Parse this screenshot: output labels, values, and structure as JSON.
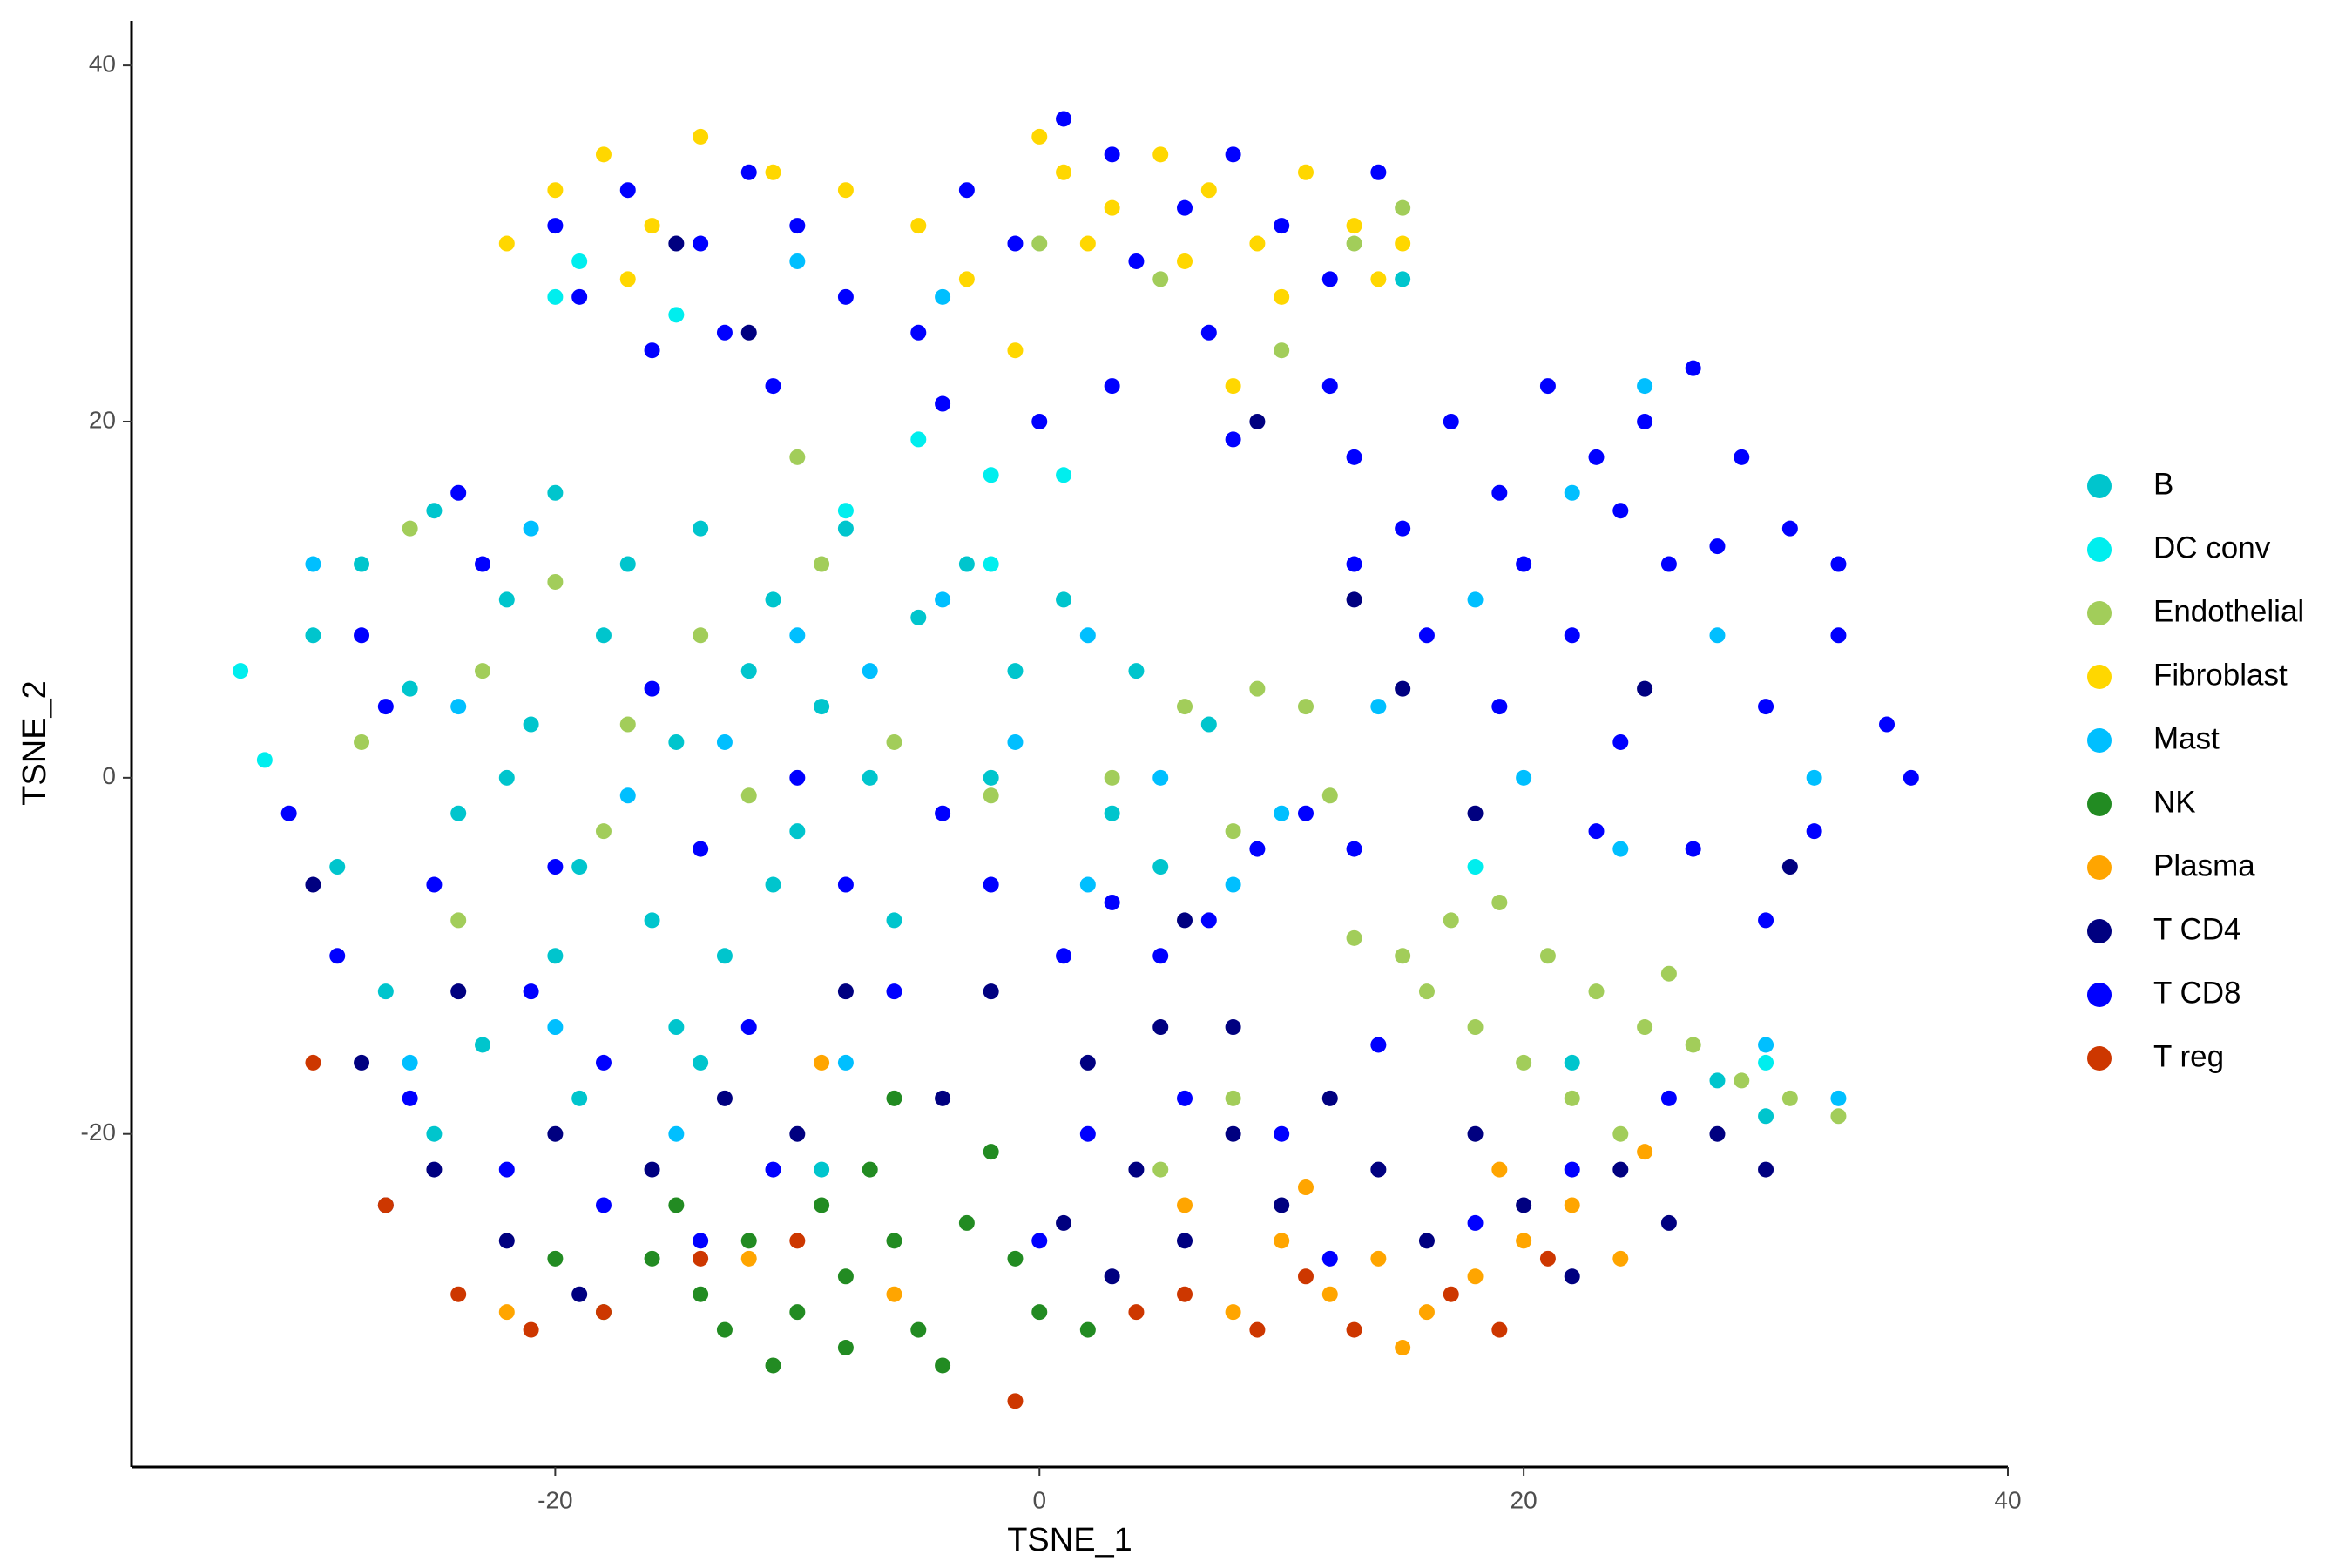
{
  "chart_data": {
    "type": "scatter",
    "xlabel": "TSNE_1",
    "ylabel": "TSNE_2",
    "xlim": [
      -37.5,
      40
    ],
    "ylim": [
      -38.7,
      42.5
    ],
    "xticks": [
      -20,
      0,
      20,
      40
    ],
    "yticks": [
      -20,
      0,
      20,
      40
    ],
    "legend": "right",
    "series": [
      {
        "name": "B",
        "color": "#00c5cd",
        "x": [
          -30,
          -28,
          -26,
          -25,
          -24,
          -22,
          -21,
          -20,
          -19,
          -18,
          -17,
          -16,
          -15,
          -14,
          -13,
          -12,
          -11,
          -10,
          -9,
          -8,
          -27,
          -23,
          -19,
          -15,
          -11,
          -7,
          -5,
          -3,
          -1,
          1,
          3,
          5,
          7,
          -25,
          -20,
          -14,
          -9,
          -6,
          -29,
          -22,
          15,
          22,
          28,
          30,
          -2,
          4
        ],
        "y": [
          8,
          12,
          5,
          15,
          -2,
          10,
          3,
          16,
          -5,
          8,
          12,
          -8,
          2,
          14,
          -10,
          6,
          10,
          -3,
          4,
          14,
          -12,
          -15,
          -18,
          -14,
          -6,
          0,
          9,
          12,
          6,
          10,
          -2,
          -5,
          3,
          -20,
          -10,
          -16,
          -22,
          -8,
          -5,
          0,
          28,
          -16,
          -17,
          -19,
          0,
          6
        ]
      },
      {
        "name": "DC conv",
        "color": "#00eeee",
        "x": [
          -2,
          1,
          -5,
          -15,
          -19,
          -20,
          -33,
          -32,
          -8,
          18,
          30,
          -2
        ],
        "y": [
          17,
          17,
          19,
          26,
          29,
          27,
          6,
          1,
          15,
          -5,
          -16,
          12
        ]
      },
      {
        "name": "Endothelial",
        "color": "#a2cd5a",
        "x": [
          -26,
          -23,
          -20,
          -17,
          -14,
          -12,
          -9,
          -6,
          -2,
          3,
          6,
          9,
          11,
          8,
          12,
          13,
          15,
          17,
          19,
          21,
          23,
          25,
          27,
          29,
          31,
          33,
          18,
          20,
          22,
          24,
          16,
          26,
          -28,
          -24,
          -18,
          -10,
          0,
          5,
          10,
          13,
          15,
          8,
          5
        ],
        "y": [
          14,
          6,
          11,
          3,
          8,
          -1,
          12,
          2,
          -1,
          0,
          4,
          5,
          4,
          -3,
          -1,
          -9,
          -10,
          -8,
          -7,
          -10,
          -12,
          -14,
          -15,
          -17,
          -18,
          -19,
          -14,
          -16,
          -18,
          -20,
          -12,
          -11,
          2,
          -8,
          -3,
          18,
          30,
          28,
          24,
          30,
          32,
          -18,
          -22
        ]
      },
      {
        "name": "Fibroblast",
        "color": "#ffd700",
        "x": [
          -20,
          -18,
          -16,
          -14,
          -22,
          -11,
          -8,
          -5,
          -3,
          0,
          1,
          3,
          5,
          7,
          9,
          11,
          13,
          15,
          14,
          10,
          6,
          2,
          -1,
          8,
          -17
        ],
        "y": [
          33,
          35,
          31,
          36,
          30,
          34,
          33,
          31,
          28,
          36,
          34,
          32,
          35,
          33,
          30,
          34,
          31,
          30,
          28,
          27,
          29,
          30,
          24,
          22,
          28
        ]
      },
      {
        "name": "Mast",
        "color": "#00bfff",
        "x": [
          -24,
          -21,
          -17,
          -13,
          -10,
          -7,
          -4,
          -1,
          2,
          5,
          8,
          10,
          -15,
          -20,
          -26,
          14,
          18,
          22,
          25,
          28,
          32,
          20,
          24,
          30,
          33,
          -10,
          -4,
          -30,
          -8,
          2
        ],
        "y": [
          4,
          14,
          -1,
          2,
          8,
          6,
          10,
          2,
          8,
          0,
          -6,
          -2,
          -20,
          -14,
          -16,
          4,
          10,
          16,
          22,
          8,
          0,
          0,
          -4,
          -15,
          -18,
          29,
          27,
          12,
          -16,
          -6
        ]
      },
      {
        "name": "NK",
        "color": "#228b22",
        "x": [
          -16,
          -14,
          -12,
          -10,
          -8,
          -6,
          -5,
          -4,
          -7,
          -9,
          -13,
          -11,
          -3,
          -2,
          -15,
          -6,
          -18,
          0,
          2,
          -1,
          -20,
          -8
        ],
        "y": [
          -27,
          -29,
          -26,
          -30,
          -28,
          -26,
          -31,
          -33,
          -22,
          -24,
          -31,
          -33,
          -25,
          -21,
          -24,
          -18,
          -30,
          -30,
          -31,
          -27,
          -27,
          -32
        ]
      },
      {
        "name": "Plasma",
        "color": "#ffa500",
        "x": [
          10,
          12,
          14,
          16,
          18,
          20,
          22,
          24,
          8,
          6,
          19,
          25,
          -12,
          -6,
          -22,
          -9,
          15,
          11
        ],
        "y": [
          -26,
          -29,
          -27,
          -30,
          -28,
          -26,
          -24,
          -27,
          -30,
          -24,
          -22,
          -21,
          -27,
          -29,
          -30,
          -16,
          -32,
          -23
        ]
      },
      {
        "name": "T CD4",
        "color": "#000080",
        "x": [
          -28,
          -25,
          -22,
          -19,
          -16,
          -13,
          -10,
          -24,
          -30,
          -27,
          -20,
          -8,
          -4,
          2,
          4,
          6,
          8,
          10,
          12,
          14,
          16,
          18,
          20,
          22,
          24,
          26,
          28,
          30,
          3,
          1,
          5,
          8,
          13,
          15,
          18,
          -15,
          -12,
          9,
          31,
          25,
          -2,
          6
        ],
        "y": [
          -16,
          -22,
          -26,
          -29,
          -22,
          -18,
          -20,
          -12,
          -6,
          -24,
          -20,
          -12,
          -18,
          -16,
          -22,
          -26,
          -20,
          -24,
          -18,
          -22,
          -26,
          -20,
          -24,
          -28,
          -22,
          -25,
          -20,
          -22,
          -28,
          -25,
          -14,
          -14,
          10,
          5,
          -2,
          30,
          25,
          20,
          -5,
          5,
          -12,
          -8
        ]
      },
      {
        "name": "T CD8",
        "color": "#0000ff",
        "x": [
          -20,
          -17,
          -14,
          -12,
          -10,
          -13,
          -16,
          -19,
          -11,
          -8,
          -5,
          -3,
          -1,
          1,
          3,
          4,
          6,
          8,
          10,
          12,
          7,
          3,
          0,
          -4,
          14,
          8,
          12,
          13,
          15,
          17,
          19,
          21,
          23,
          25,
          27,
          29,
          31,
          33,
          35,
          36,
          32,
          30,
          27,
          24,
          22,
          19,
          16,
          13,
          26,
          30,
          20,
          24,
          28,
          33,
          23,
          -31,
          -29,
          -27,
          -25,
          -23,
          -21,
          -18,
          -16,
          -14,
          -12,
          -10,
          -8,
          -6,
          -4,
          -2,
          1,
          3,
          5,
          7,
          9,
          11,
          13,
          -26,
          -22,
          -18,
          -14,
          -11,
          -20,
          -28,
          -24,
          2,
          6,
          10,
          14,
          18,
          22,
          26,
          12,
          0
        ],
        "y": [
          31,
          33,
          30,
          34,
          31,
          25,
          24,
          27,
          22,
          27,
          25,
          33,
          30,
          37,
          35,
          29,
          32,
          35,
          31,
          28,
          25,
          22,
          20,
          21,
          34,
          19,
          22,
          18,
          14,
          20,
          16,
          22,
          18,
          20,
          23,
          18,
          14,
          8,
          3,
          0,
          -3,
          -8,
          -4,
          2,
          8,
          4,
          8,
          12,
          12,
          4,
          12,
          15,
          13,
          12,
          -3,
          -2,
          -10,
          4,
          -6,
          12,
          -12,
          -16,
          5,
          -4,
          -14,
          0,
          -6,
          -12,
          -2,
          -6,
          -10,
          -7,
          -10,
          -8,
          -4,
          -2,
          -4,
          -18,
          -22,
          -24,
          -26,
          -22,
          -5,
          8,
          16,
          -20,
          -18,
          -20,
          -15,
          -25,
          -22,
          -18,
          -27,
          -26
        ]
      },
      {
        "name": "T reg",
        "color": "#cd3700",
        "x": [
          -24,
          -21,
          -18,
          -27,
          -30,
          -14,
          6,
          9,
          13,
          17,
          21,
          -1,
          4,
          -10,
          19,
          11
        ],
        "y": [
          -29,
          -31,
          -30,
          -24,
          -16,
          -27,
          -29,
          -31,
          -31,
          -29,
          -27,
          -35,
          -30,
          -26,
          -31,
          -28
        ]
      }
    ]
  }
}
